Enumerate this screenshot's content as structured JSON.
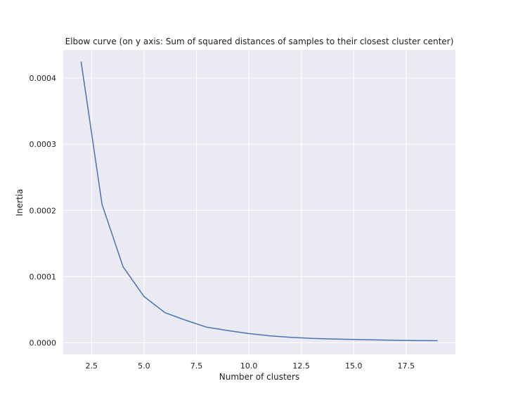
{
  "chart_data": {
    "type": "line",
    "title": "Elbow curve (on y axis: Sum of squared distances of samples to their closest cluster center)",
    "xlabel": "Number of clusters",
    "ylabel": "Inertia",
    "xlim": [
      1.15,
      19.85
    ],
    "ylim": [
      -1.75e-05,
      0.0004425
    ],
    "xticks": [
      2.5,
      5.0,
      7.5,
      10.0,
      12.5,
      15.0,
      17.5
    ],
    "xtick_labels": [
      "2.5",
      "5.0",
      "7.5",
      "10.0",
      "12.5",
      "15.0",
      "17.5"
    ],
    "yticks": [
      0.0,
      0.0001,
      0.0002,
      0.0003,
      0.0004
    ],
    "ytick_labels": [
      "0.0000",
      "0.0001",
      "0.0002",
      "0.0003",
      "0.0004"
    ],
    "grid": true,
    "series": [
      {
        "color": "#4c72b0",
        "x": [
          2,
          3,
          4,
          5,
          6,
          7,
          8,
          9,
          10,
          11,
          12,
          13,
          14,
          15,
          16,
          17,
          18,
          19
        ],
        "y": [
          0.000425,
          0.000209,
          0.000115,
          7e-05,
          4.55e-05,
          3.4e-05,
          2.35e-05,
          1.85e-05,
          1.4e-05,
          1.05e-05,
          8.3e-06,
          6.6e-06,
          5.8e-06,
          5.1e-06,
          4.4e-06,
          3.8e-06,
          3.4e-06,
          3.2e-06
        ]
      }
    ]
  },
  "style": {
    "plot_background": "#eaeaf2",
    "grid_color": "#ffffff",
    "figure_background": "#ffffff",
    "text_color": "#1f1f1f"
  }
}
